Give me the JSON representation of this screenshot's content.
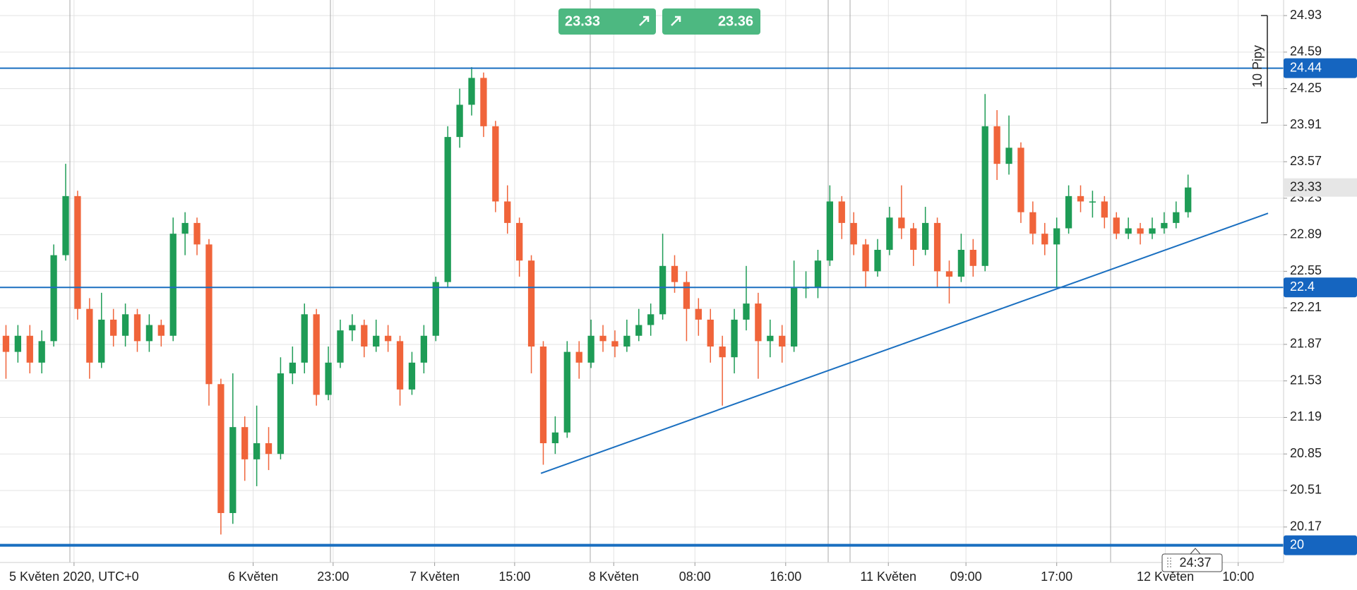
{
  "chart_data": {
    "type": "candlestick",
    "x": [
      0,
      1,
      2,
      3,
      4,
      5,
      6,
      7,
      8,
      9,
      10,
      11,
      12,
      13,
      14,
      15,
      16,
      17,
      18,
      19,
      20,
      21,
      22,
      23,
      24,
      25,
      26,
      27,
      28,
      29,
      30,
      31,
      32,
      33,
      34,
      35,
      36,
      37,
      38,
      39,
      40,
      41,
      42,
      43,
      44,
      45,
      46,
      47,
      48,
      49,
      50,
      51,
      52,
      53,
      54,
      55,
      56,
      57,
      58,
      59,
      60,
      61,
      62,
      63,
      64,
      65,
      66,
      67,
      68,
      69,
      70,
      71,
      72,
      73,
      74,
      75,
      76,
      77,
      78,
      79,
      80,
      81,
      82,
      83,
      84,
      85,
      86,
      87,
      88,
      89,
      90,
      91,
      92,
      93,
      94,
      95,
      96,
      97,
      98,
      99
    ],
    "open": [
      21.95,
      21.8,
      21.95,
      21.7,
      21.9,
      22.7,
      23.25,
      22.2,
      21.7,
      22.1,
      21.95,
      22.15,
      21.9,
      22.05,
      21.95,
      22.9,
      23.0,
      22.8,
      21.5,
      20.3,
      21.1,
      20.8,
      20.95,
      20.85,
      21.6,
      21.7,
      22.15,
      21.4,
      21.7,
      22.0,
      22.05,
      21.85,
      21.95,
      21.9,
      21.45,
      21.7,
      21.95,
      22.45,
      23.8,
      24.1,
      24.35,
      23.9,
      23.2,
      23.0,
      22.65,
      21.85,
      20.95,
      21.05,
      21.8,
      21.7,
      21.95,
      21.9,
      21.85,
      21.95,
      22.05,
      22.15,
      22.6,
      22.45,
      22.2,
      22.1,
      21.85,
      21.75,
      22.1,
      22.25,
      21.9,
      21.95,
      21.85,
      22.4,
      22.4,
      22.65,
      23.2,
      23.0,
      22.8,
      22.55,
      22.75,
      23.05,
      22.95,
      22.75,
      23.0,
      22.55,
      22.5,
      22.75,
      22.6,
      23.9,
      23.55,
      23.7,
      23.1,
      22.9,
      22.8,
      22.95,
      23.25,
      23.2,
      23.2,
      23.05,
      22.9,
      22.95,
      22.9,
      22.95,
      23.0,
      23.1
    ],
    "high": [
      22.05,
      22.05,
      22.05,
      22.0,
      22.8,
      23.55,
      23.3,
      22.3,
      22.35,
      22.2,
      22.25,
      22.2,
      22.15,
      22.1,
      23.05,
      23.1,
      23.05,
      22.85,
      21.55,
      21.6,
      21.2,
      21.3,
      21.1,
      21.75,
      21.85,
      22.25,
      22.2,
      21.85,
      22.1,
      22.15,
      22.1,
      22.1,
      22.05,
      21.95,
      21.8,
      22.05,
      22.5,
      23.9,
      24.25,
      24.45,
      24.4,
      23.95,
      23.35,
      23.05,
      22.7,
      21.9,
      21.2,
      21.9,
      21.9,
      22.1,
      22.05,
      22.0,
      22.1,
      22.2,
      22.25,
      22.9,
      22.7,
      22.55,
      22.3,
      22.2,
      21.95,
      22.2,
      22.6,
      22.35,
      22.1,
      22.05,
      22.65,
      22.55,
      22.75,
      23.35,
      23.25,
      23.1,
      22.85,
      22.85,
      23.15,
      23.35,
      23.0,
      23.15,
      23.05,
      22.65,
      22.9,
      22.85,
      24.2,
      24.05,
      24.0,
      23.75,
      23.2,
      23.0,
      23.05,
      23.35,
      23.35,
      23.3,
      23.25,
      23.1,
      23.05,
      23.0,
      23.05,
      23.1,
      23.2,
      23.45
    ],
    "low": [
      21.55,
      21.7,
      21.6,
      21.6,
      21.85,
      22.65,
      22.1,
      21.55,
      21.65,
      21.85,
      21.85,
      21.8,
      21.8,
      21.85,
      21.9,
      22.7,
      22.7,
      21.3,
      20.1,
      20.2,
      20.6,
      20.55,
      20.7,
      20.8,
      21.5,
      21.6,
      21.3,
      21.35,
      21.65,
      21.9,
      21.75,
      21.8,
      21.8,
      21.3,
      21.4,
      21.6,
      21.9,
      22.4,
      23.7,
      24.0,
      23.8,
      23.1,
      22.9,
      22.5,
      21.6,
      20.75,
      20.85,
      21.0,
      21.55,
      21.65,
      21.8,
      21.75,
      21.8,
      21.9,
      21.95,
      22.1,
      22.35,
      21.9,
      21.95,
      21.7,
      21.3,
      21.6,
      22.0,
      21.55,
      21.75,
      21.7,
      21.8,
      22.3,
      22.3,
      22.6,
      22.85,
      22.7,
      22.4,
      22.5,
      22.7,
      22.85,
      22.6,
      22.7,
      22.4,
      22.25,
      22.45,
      22.5,
      22.55,
      23.4,
      23.45,
      23.0,
      22.8,
      22.7,
      22.4,
      22.9,
      23.1,
      23.05,
      22.95,
      22.85,
      22.85,
      22.8,
      22.85,
      22.9,
      22.95,
      23.05
    ],
    "close": [
      21.8,
      21.95,
      21.7,
      21.9,
      22.7,
      23.25,
      22.2,
      21.7,
      22.1,
      21.95,
      22.15,
      21.9,
      22.05,
      21.95,
      22.9,
      23.0,
      22.8,
      21.5,
      20.3,
      21.1,
      20.8,
      20.95,
      20.85,
      21.6,
      21.7,
      22.15,
      21.4,
      21.7,
      22.0,
      22.05,
      21.85,
      21.95,
      21.9,
      21.45,
      21.7,
      21.95,
      22.45,
      23.8,
      24.1,
      24.35,
      23.9,
      23.2,
      23.0,
      22.65,
      21.85,
      20.95,
      21.05,
      21.8,
      21.7,
      21.95,
      21.9,
      21.85,
      21.95,
      22.05,
      22.15,
      22.6,
      22.45,
      22.2,
      22.1,
      21.85,
      21.75,
      22.1,
      22.25,
      21.9,
      21.95,
      21.85,
      22.4,
      22.4,
      22.65,
      23.2,
      23.0,
      22.8,
      22.55,
      22.75,
      23.05,
      22.95,
      22.75,
      23.0,
      22.55,
      22.5,
      22.75,
      22.6,
      23.9,
      23.55,
      23.7,
      23.1,
      22.9,
      22.8,
      22.95,
      23.25,
      23.2,
      23.2,
      23.05,
      22.9,
      22.95,
      22.9,
      22.95,
      23.0,
      23.1,
      23.33
    ],
    "up_color": "#1e9c56",
    "down_color": "#f0643a",
    "xlim": [
      -0.5,
      107
    ],
    "xticks": [
      {
        "value": 5.7,
        "label": "5 Květen 2020, UTC+0"
      },
      {
        "value": 20.7,
        "label": "6 Květen"
      },
      {
        "value": 27.4,
        "label": "23:00"
      },
      {
        "value": 35.9,
        "label": "7 Květen"
      },
      {
        "value": 42.6,
        "label": "15:00"
      },
      {
        "value": 50.9,
        "label": "8 Květen"
      },
      {
        "value": 57.7,
        "label": "08:00"
      },
      {
        "value": 65.3,
        "label": "16:00"
      },
      {
        "value": 73.9,
        "label": "11 Květen"
      },
      {
        "value": 80.4,
        "label": "09:00"
      },
      {
        "value": 88.0,
        "label": "17:00"
      },
      {
        "value": 97.1,
        "label": "12 Květen"
      },
      {
        "value": 103.2,
        "label": "10:00"
      }
    ],
    "ylim": [
      19.84,
      25.075
    ],
    "yticks": [
      24.93,
      24.59,
      24.25,
      23.91,
      23.57,
      23.23,
      22.89,
      22.55,
      22.21,
      21.87,
      21.53,
      21.19,
      20.85,
      20.51,
      20.17
    ],
    "grid": true,
    "levels": [
      24.44,
      22.4,
      20
    ],
    "level_color": "#1a6fc0",
    "trendline": {
      "x": [
        44.8,
        105.7
      ],
      "y": [
        20.67,
        23.09
      ]
    },
    "quote": {
      "bid": 23.33,
      "ask": 23.36
    },
    "range_annotation": "10 Pipy",
    "countdown": "24:37"
  }
}
